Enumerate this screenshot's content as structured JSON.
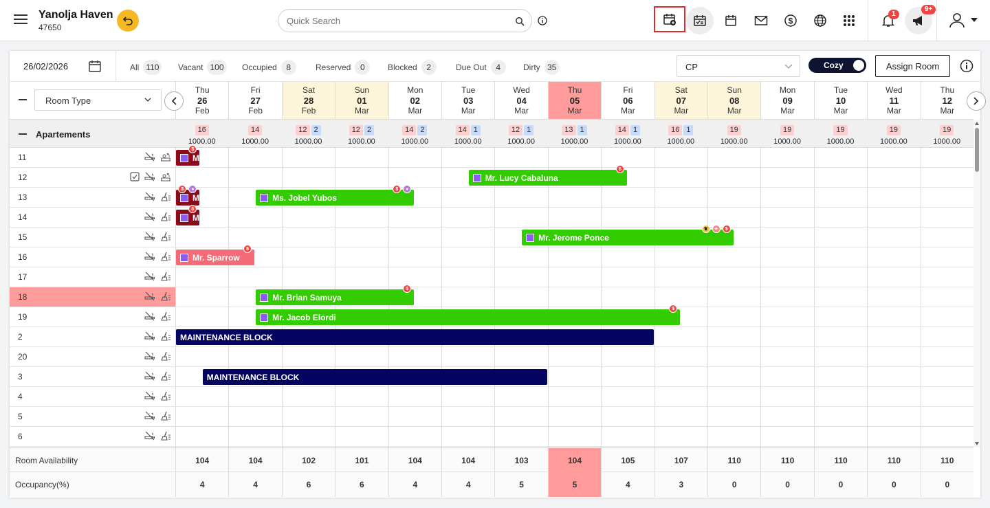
{
  "header": {
    "hotel_name": "Yanolja Haven",
    "hotel_id": "47650",
    "search_placeholder": "Quick Search",
    "notif_count": "1",
    "announce_count": "9+"
  },
  "filter": {
    "date": "26/02/2026",
    "stats": [
      {
        "label": "All",
        "count": "110"
      },
      {
        "label": "Vacant",
        "count": "100"
      },
      {
        "label": "Occupied",
        "count": "8"
      },
      {
        "label": "Reserved",
        "count": "0"
      },
      {
        "label": "Blocked",
        "count": "2"
      },
      {
        "label": "Due Out",
        "count": "4"
      },
      {
        "label": "Dirty",
        "count": "35"
      }
    ],
    "rate_plan": "CP",
    "toggle_label": "Cozy",
    "assign_label": "Assign Room"
  },
  "grid": {
    "room_type_label": "Room Type",
    "group_label": "Apartements",
    "days": [
      {
        "dow": "Thu",
        "day": "26",
        "mon": "Feb",
        "avail": "16",
        "booked": "",
        "rate": "1000.00",
        "room_avail": "104",
        "occ": "4",
        "type": "normal"
      },
      {
        "dow": "Fri",
        "day": "27",
        "mon": "Feb",
        "avail": "14",
        "booked": "",
        "rate": "1000.00",
        "room_avail": "104",
        "occ": "4",
        "type": "normal"
      },
      {
        "dow": "Sat",
        "day": "28",
        "mon": "Feb",
        "avail": "12",
        "booked": "2",
        "rate": "1000.00",
        "room_avail": "102",
        "occ": "6",
        "type": "weekend"
      },
      {
        "dow": "Sun",
        "day": "01",
        "mon": "Mar",
        "avail": "12",
        "booked": "2",
        "rate": "1000.00",
        "room_avail": "101",
        "occ": "6",
        "type": "weekend"
      },
      {
        "dow": "Mon",
        "day": "02",
        "mon": "Mar",
        "avail": "14",
        "booked": "2",
        "rate": "1000.00",
        "room_avail": "104",
        "occ": "4",
        "type": "normal"
      },
      {
        "dow": "Tue",
        "day": "03",
        "mon": "Mar",
        "avail": "14",
        "booked": "1",
        "rate": "1000.00",
        "room_avail": "104",
        "occ": "4",
        "type": "normal"
      },
      {
        "dow": "Wed",
        "day": "04",
        "mon": "Mar",
        "avail": "12",
        "booked": "1",
        "rate": "1000.00",
        "room_avail": "103",
        "occ": "5",
        "type": "normal"
      },
      {
        "dow": "Thu",
        "day": "05",
        "mon": "Mar",
        "avail": "13",
        "booked": "1",
        "rate": "1000.00",
        "room_avail": "104",
        "occ": "5",
        "type": "today"
      },
      {
        "dow": "Fri",
        "day": "06",
        "mon": "Mar",
        "avail": "14",
        "booked": "1",
        "rate": "1000.00",
        "room_avail": "105",
        "occ": "4",
        "type": "normal"
      },
      {
        "dow": "Sat",
        "day": "07",
        "mon": "Mar",
        "avail": "16",
        "booked": "1",
        "rate": "1000.00",
        "room_avail": "107",
        "occ": "3",
        "type": "weekend"
      },
      {
        "dow": "Sun",
        "day": "08",
        "mon": "Mar",
        "avail": "19",
        "booked": "",
        "rate": "1000.00",
        "room_avail": "110",
        "occ": "0",
        "type": "weekend"
      },
      {
        "dow": "Mon",
        "day": "09",
        "mon": "Mar",
        "avail": "19",
        "booked": "",
        "rate": "1000.00",
        "room_avail": "110",
        "occ": "0",
        "type": "normal"
      },
      {
        "dow": "Tue",
        "day": "10",
        "mon": "Mar",
        "avail": "19",
        "booked": "",
        "rate": "1000.00",
        "room_avail": "110",
        "occ": "0",
        "type": "normal"
      },
      {
        "dow": "Wed",
        "day": "11",
        "mon": "Mar",
        "avail": "19",
        "booked": "",
        "rate": "1000.00",
        "room_avail": "110",
        "occ": "0",
        "type": "normal"
      },
      {
        "dow": "Thu",
        "day": "12",
        "mon": "Mar",
        "avail": "19",
        "booked": "",
        "rate": "1000.00",
        "room_avail": "110",
        "occ": "0",
        "type": "normal"
      }
    ],
    "rooms": [
      {
        "name": "11",
        "highlight": false,
        "checked": false
      },
      {
        "name": "12",
        "highlight": false,
        "checked": true
      },
      {
        "name": "13",
        "highlight": false,
        "checked": false
      },
      {
        "name": "14",
        "highlight": false,
        "checked": false
      },
      {
        "name": "15",
        "highlight": false,
        "checked": false
      },
      {
        "name": "16",
        "highlight": false,
        "checked": false
      },
      {
        "name": "17",
        "highlight": false,
        "checked": false
      },
      {
        "name": "18",
        "highlight": true,
        "checked": false
      },
      {
        "name": "19",
        "highlight": false,
        "checked": false
      },
      {
        "name": "2",
        "highlight": false,
        "checked": false
      },
      {
        "name": "20",
        "highlight": false,
        "checked": false
      },
      {
        "name": "3",
        "highlight": false,
        "checked": false
      },
      {
        "name": "4",
        "highlight": false,
        "checked": false
      },
      {
        "name": "5",
        "highlight": false,
        "checked": false
      },
      {
        "name": "6",
        "highlight": false,
        "checked": false
      }
    ],
    "reservations": [
      {
        "row": 0,
        "start": 0,
        "span": 0.47,
        "label": "M",
        "color": "#8b0b1a",
        "icon": true,
        "dots": [
          "$"
        ]
      },
      {
        "row": 1,
        "start": 5.5,
        "span": 3,
        "label": "Mr. Lucy Cabaluna",
        "color": "#33cc00",
        "icon": true,
        "dots": [
          "$"
        ]
      },
      {
        "row": 2,
        "start": 0,
        "span": 0.47,
        "label": "M",
        "color": "#8b0b1a",
        "icon": true,
        "dots": [
          "$",
          "u"
        ]
      },
      {
        "row": 2,
        "start": 1.5,
        "span": 3,
        "label": "Ms. Jobel Yubos",
        "color": "#33cc00",
        "icon": true,
        "dots": [
          "$",
          "u"
        ]
      },
      {
        "row": 3,
        "start": 0,
        "span": 0.47,
        "label": "M",
        "color": "#8b0b1a",
        "icon": true,
        "dots": [
          "$"
        ]
      },
      {
        "row": 4,
        "start": 6.5,
        "span": 4,
        "label": "Mr. Jerome Ponce",
        "color": "#33cc00",
        "icon": true,
        "dots": [
          "c",
          "p",
          "$"
        ]
      },
      {
        "row": 5,
        "start": 0,
        "span": 1.5,
        "label": "Mr. Sparrow",
        "color": "#f26b76",
        "icon": true,
        "dots": [
          "$"
        ]
      },
      {
        "row": 7,
        "start": 1.5,
        "span": 3,
        "label": "Mr. Brian Samuya",
        "color": "#33cc00",
        "icon": true,
        "dots": [
          "$"
        ]
      },
      {
        "row": 8,
        "start": 1.5,
        "span": 8,
        "label": "Mr. Jacob Elordi",
        "color": "#33cc00",
        "icon": true,
        "dots": [
          "$"
        ]
      },
      {
        "row": 9,
        "start": 0,
        "span": 9,
        "label": "MAINTENANCE BLOCK",
        "color": "#050561",
        "icon": false,
        "dots": []
      },
      {
        "row": 11,
        "start": 0.5,
        "span": 6.5,
        "label": "MAINTENANCE BLOCK",
        "color": "#050561",
        "icon": false,
        "dots": []
      }
    ]
  },
  "footer": {
    "room_avail_label": "Room Availability",
    "occ_label": "Occupancy(%)"
  }
}
